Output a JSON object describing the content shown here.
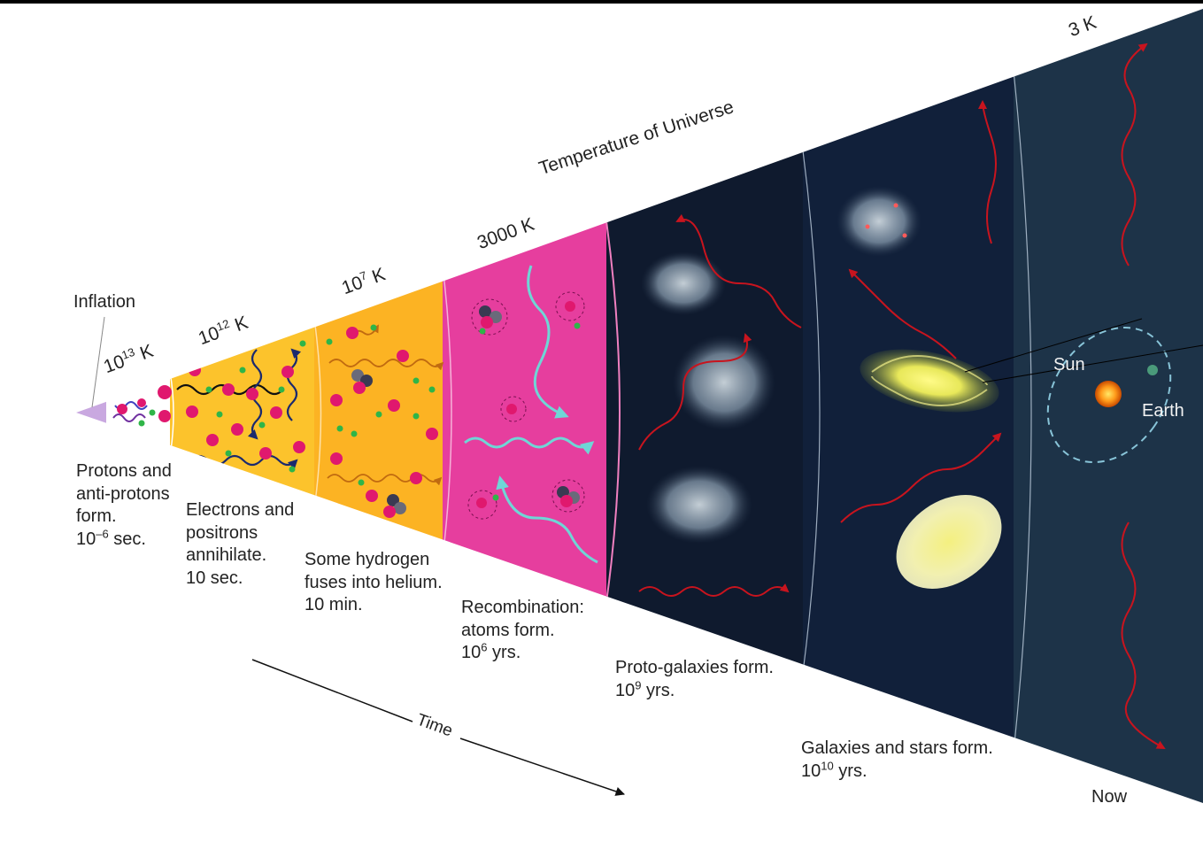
{
  "title": "Temperature of Universe",
  "axis": {
    "time_label": "Time",
    "now_label": "Now"
  },
  "inflation_label": "Inflation",
  "stages": [
    {
      "temp_base": "10",
      "temp_exp": "13",
      "temp_unit": "K",
      "caption_lines": [
        "Protons and",
        "anti-protons",
        "form."
      ],
      "time_base": "10",
      "time_exp": "–6",
      "time_unit": "sec."
    },
    {
      "temp_base": "10",
      "temp_exp": "12",
      "temp_unit": "K",
      "caption_lines": [
        "Electrons and",
        "positrons",
        "annihilate.",
        "10 sec."
      ]
    },
    {
      "temp_base": "10",
      "temp_exp": "7",
      "temp_unit": "K",
      "caption_lines": [
        "Some hydrogen",
        "fuses into helium.",
        "10 min."
      ]
    },
    {
      "temp_full": "3000 K",
      "caption_lines": [
        "Recombination:",
        "atoms form."
      ],
      "time_base": "10",
      "time_exp": "6",
      "time_unit": "yrs."
    },
    {
      "caption_lines": [
        "Proto-galaxies form."
      ],
      "time_base": "10",
      "time_exp": "9",
      "time_unit": "yrs."
    },
    {
      "caption_lines": [
        "Galaxies and stars form."
      ],
      "time_base": "10",
      "time_exp": "10",
      "time_unit": "yrs."
    },
    {
      "temp_full": "3 K"
    }
  ],
  "solar": {
    "sun_label": "Sun",
    "earth_label": "Earth"
  },
  "colors": {
    "inflation": "#c9a8e0",
    "stage1": "#ffffff",
    "stage2": "#fcc32c",
    "stage3": "#fcb323",
    "stage4": "#e63e9e",
    "stage5": "#0f1a2e",
    "stage6": "#11203a",
    "stage7": "#1d3348",
    "proton": "#e0186e",
    "electron": "#2fb548",
    "photon_red": "#c8141e",
    "photon_cyan": "#6fd6d6"
  }
}
